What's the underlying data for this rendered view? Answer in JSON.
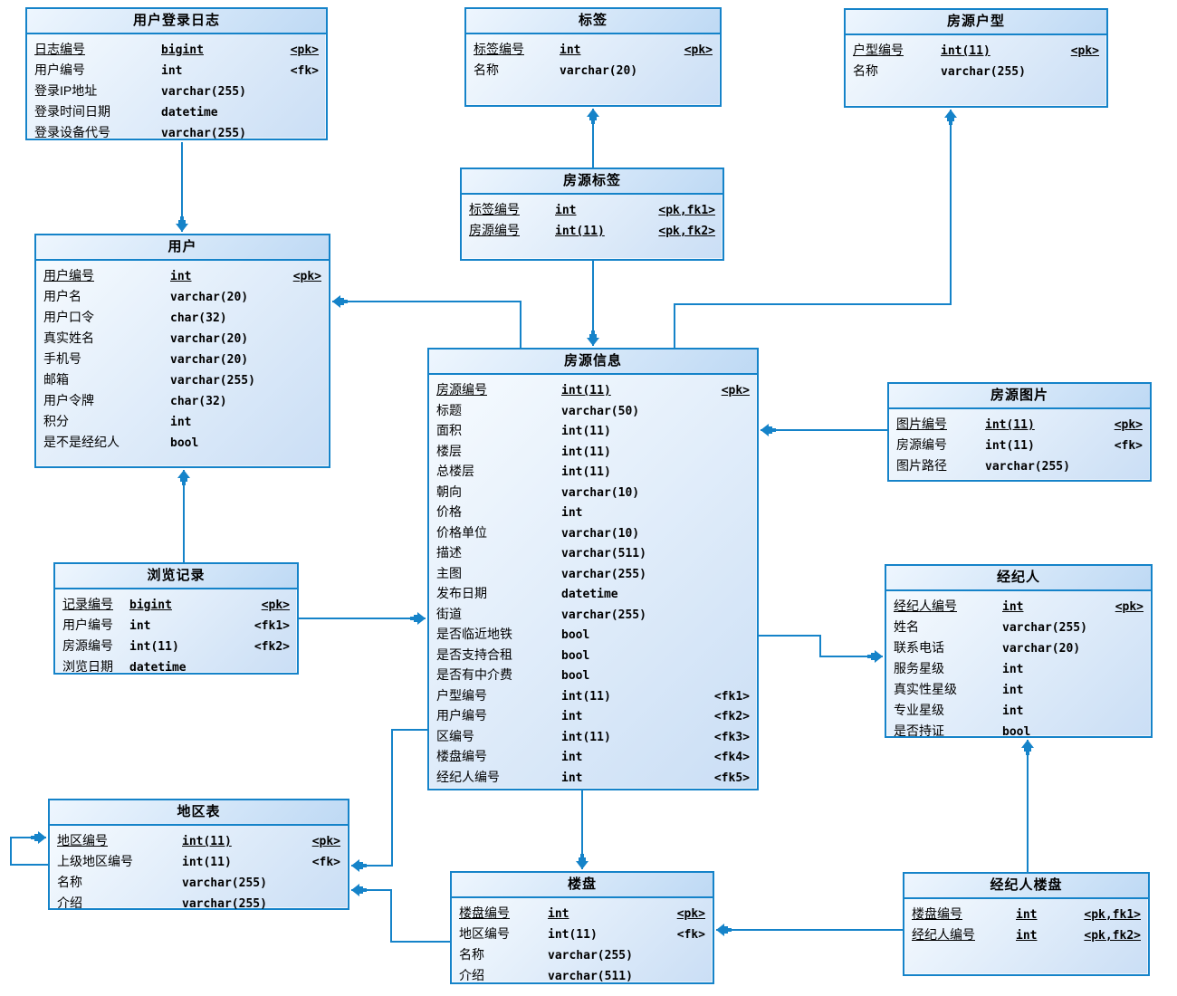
{
  "diagram": {
    "kind": "physical-data-model-er-diagram",
    "colors": {
      "line_and_border": "#1583c9",
      "header_fill_start": "#eef6fe",
      "header_fill_end": "#bed9f4",
      "body_fill_start": "#f8fcff",
      "body_fill_end": "#cadef5",
      "text": "#000000"
    }
  },
  "tables": [
    {
      "key": "user-login-log",
      "title": "用户登录日志",
      "fields": [
        {
          "name": "日志编号",
          "type": "bigint",
          "key": "<pk>",
          "pk": true
        },
        {
          "name": "用户编号",
          "type": "int",
          "key": "<fk>",
          "pk": false
        },
        {
          "name": "登录IP地址",
          "type": "varchar(255)",
          "key": "",
          "pk": false
        },
        {
          "name": "登录时间日期",
          "type": "datetime",
          "key": "",
          "pk": false
        },
        {
          "name": "登录设备代号",
          "type": "varchar(255)",
          "key": "",
          "pk": false
        }
      ]
    },
    {
      "key": "tag",
      "title": "标签",
      "fields": [
        {
          "name": "标签编号",
          "type": "int",
          "key": "<pk>",
          "pk": true
        },
        {
          "name": "名称",
          "type": "varchar(20)",
          "key": "",
          "pk": false
        }
      ]
    },
    {
      "key": "house-type",
      "title": "房源户型",
      "fields": [
        {
          "name": "户型编号",
          "type": "int(11)",
          "key": "<pk>",
          "pk": true
        },
        {
          "name": "名称",
          "type": "varchar(255)",
          "key": "",
          "pk": false
        }
      ]
    },
    {
      "key": "house-tag",
      "title": "房源标签",
      "fields": [
        {
          "name": "标签编号",
          "type": "int",
          "key": "<pk,fk1>",
          "pk": true
        },
        {
          "name": "房源编号",
          "type": "int(11)",
          "key": "<pk,fk2>",
          "pk": true
        }
      ]
    },
    {
      "key": "user",
      "title": "用户",
      "fields": [
        {
          "name": "用户编号",
          "type": "int",
          "key": "<pk>",
          "pk": true
        },
        {
          "name": "用户名",
          "type": "varchar(20)",
          "key": "",
          "pk": false
        },
        {
          "name": "用户口令",
          "type": "char(32)",
          "key": "",
          "pk": false
        },
        {
          "name": "真实姓名",
          "type": "varchar(20)",
          "key": "",
          "pk": false
        },
        {
          "name": "手机号",
          "type": "varchar(20)",
          "key": "",
          "pk": false
        },
        {
          "name": "邮箱",
          "type": "varchar(255)",
          "key": "",
          "pk": false
        },
        {
          "name": "用户令牌",
          "type": "char(32)",
          "key": "",
          "pk": false
        },
        {
          "name": "积分",
          "type": "int",
          "key": "",
          "pk": false
        },
        {
          "name": "是不是经纪人",
          "type": "bool",
          "key": "",
          "pk": false
        }
      ]
    },
    {
      "key": "house-info",
      "title": "房源信息",
      "fields": [
        {
          "name": "房源编号",
          "type": "int(11)",
          "key": "<pk>",
          "pk": true
        },
        {
          "name": "标题",
          "type": "varchar(50)",
          "key": "",
          "pk": false
        },
        {
          "name": "面积",
          "type": "int(11)",
          "key": "",
          "pk": false
        },
        {
          "name": "楼层",
          "type": "int(11)",
          "key": "",
          "pk": false
        },
        {
          "name": "总楼层",
          "type": "int(11)",
          "key": "",
          "pk": false
        },
        {
          "name": "朝向",
          "type": "varchar(10)",
          "key": "",
          "pk": false
        },
        {
          "name": "价格",
          "type": "int",
          "key": "",
          "pk": false
        },
        {
          "name": "价格单位",
          "type": "varchar(10)",
          "key": "",
          "pk": false
        },
        {
          "name": "描述",
          "type": "varchar(511)",
          "key": "",
          "pk": false
        },
        {
          "name": "主图",
          "type": "varchar(255)",
          "key": "",
          "pk": false
        },
        {
          "name": "发布日期",
          "type": "datetime",
          "key": "",
          "pk": false
        },
        {
          "name": "街道",
          "type": "varchar(255)",
          "key": "",
          "pk": false
        },
        {
          "name": "是否临近地铁",
          "type": "bool",
          "key": "",
          "pk": false
        },
        {
          "name": "是否支持合租",
          "type": "bool",
          "key": "",
          "pk": false
        },
        {
          "name": "是否有中介费",
          "type": "bool",
          "key": "",
          "pk": false
        },
        {
          "name": "户型编号",
          "type": "int(11)",
          "key": "<fk1>",
          "pk": false
        },
        {
          "name": "用户编号",
          "type": "int",
          "key": "<fk2>",
          "pk": false
        },
        {
          "name": "区编号",
          "type": "int(11)",
          "key": "<fk3>",
          "pk": false
        },
        {
          "name": "楼盘编号",
          "type": "int",
          "key": "<fk4>",
          "pk": false
        },
        {
          "name": "经纪人编号",
          "type": "int",
          "key": "<fk5>",
          "pk": false
        }
      ]
    },
    {
      "key": "house-image",
      "title": "房源图片",
      "fields": [
        {
          "name": "图片编号",
          "type": "int(11)",
          "key": "<pk>",
          "pk": true
        },
        {
          "name": "房源编号",
          "type": "int(11)",
          "key": "<fk>",
          "pk": false
        },
        {
          "name": "图片路径",
          "type": "varchar(255)",
          "key": "",
          "pk": false
        }
      ]
    },
    {
      "key": "agent",
      "title": "经纪人",
      "fields": [
        {
          "name": "经纪人编号",
          "type": "int",
          "key": "<pk>",
          "pk": true
        },
        {
          "name": "姓名",
          "type": "varchar(255)",
          "key": "",
          "pk": false
        },
        {
          "name": "联系电话",
          "type": "varchar(20)",
          "key": "",
          "pk": false
        },
        {
          "name": "服务星级",
          "type": "int",
          "key": "",
          "pk": false
        },
        {
          "name": "真实性星级",
          "type": "int",
          "key": "",
          "pk": false
        },
        {
          "name": "专业星级",
          "type": "int",
          "key": "",
          "pk": false
        },
        {
          "name": "是否持证",
          "type": "bool",
          "key": "",
          "pk": false
        }
      ]
    },
    {
      "key": "browse-record",
      "title": "浏览记录",
      "fields": [
        {
          "name": "记录编号",
          "type": "bigint",
          "key": "<pk>",
          "pk": true
        },
        {
          "name": "用户编号",
          "type": "int",
          "key": "<fk1>",
          "pk": false
        },
        {
          "name": "房源编号",
          "type": "int(11)",
          "key": "<fk2>",
          "pk": false
        },
        {
          "name": "浏览日期",
          "type": "datetime",
          "key": "",
          "pk": false
        }
      ]
    },
    {
      "key": "region",
      "title": "地区表",
      "fields": [
        {
          "name": "地区编号",
          "type": "int(11)",
          "key": "<pk>",
          "pk": true
        },
        {
          "name": "上级地区编号",
          "type": "int(11)",
          "key": "<fk>",
          "pk": false
        },
        {
          "name": "名称",
          "type": "varchar(255)",
          "key": "",
          "pk": false
        },
        {
          "name": "介绍",
          "type": "varchar(255)",
          "key": "",
          "pk": false
        }
      ]
    },
    {
      "key": "building",
      "title": "楼盘",
      "fields": [
        {
          "name": "楼盘编号",
          "type": "int",
          "key": "<pk>",
          "pk": true
        },
        {
          "name": "地区编号",
          "type": "int(11)",
          "key": "<fk>",
          "pk": false
        },
        {
          "name": "名称",
          "type": "varchar(255)",
          "key": "",
          "pk": false
        },
        {
          "name": "介绍",
          "type": "varchar(511)",
          "key": "",
          "pk": false
        }
      ]
    },
    {
      "key": "agent-building",
      "title": "经纪人楼盘",
      "fields": [
        {
          "name": "楼盘编号",
          "type": "int",
          "key": "<pk,fk1>",
          "pk": true
        },
        {
          "name": "经纪人编号",
          "type": "int",
          "key": "<pk,fk2>",
          "pk": true
        }
      ]
    }
  ],
  "relations": [
    {
      "from": "用户登录日志",
      "to": "用户"
    },
    {
      "from": "房源标签",
      "to": "标签"
    },
    {
      "from": "房源标签",
      "to": "房源信息"
    },
    {
      "from": "房源信息",
      "to": "用户"
    },
    {
      "from": "房源信息",
      "to": "房源户型"
    },
    {
      "from": "房源图片",
      "to": "房源信息"
    },
    {
      "from": "浏览记录",
      "to": "房源信息"
    },
    {
      "from": "浏览记录",
      "to": "用户"
    },
    {
      "from": "房源信息",
      "to": "经纪人"
    },
    {
      "from": "房源信息",
      "to": "地区表"
    },
    {
      "from": "楼盘",
      "to": "地区表"
    },
    {
      "from": "房源信息",
      "to": "楼盘"
    },
    {
      "from": "经纪人楼盘",
      "to": "楼盘"
    },
    {
      "from": "经纪人楼盘",
      "to": "经纪人"
    },
    {
      "from": "地区表",
      "to": "地区表"
    }
  ]
}
